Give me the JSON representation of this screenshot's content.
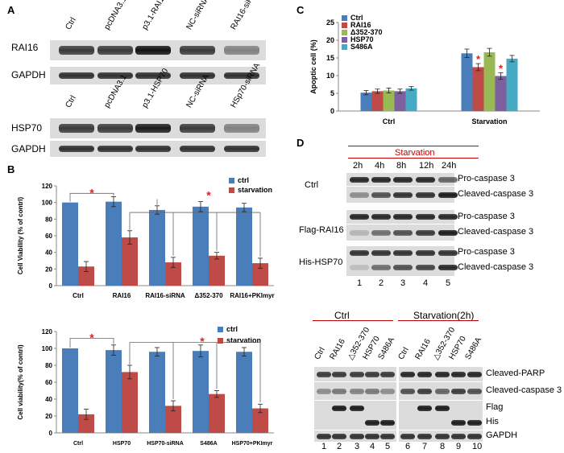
{
  "panel_letters": [
    "A",
    "B",
    "C",
    "D"
  ],
  "panelA": {
    "top_lanes": [
      "Ctrl",
      "pcDNA3.1",
      "p3.1-RAI16",
      "NC-siRNA",
      "RAI16-siRNA"
    ],
    "top_rows": [
      "RAI16",
      "GAPDH"
    ],
    "bottom_lanes": [
      "Ctrl",
      "pcDNA3.1",
      "p3.1-HSP70",
      "NC-siRNA",
      "HSp70-siRNA"
    ],
    "bottom_rows": [
      "HSP70",
      "GAPDH"
    ],
    "top_intensity": [
      0.8,
      0.8,
      1.0,
      0.8,
      0.45
    ],
    "bottom_intensity": [
      0.8,
      0.8,
      0.95,
      0.8,
      0.45
    ]
  },
  "panelD": {
    "header": "Starvation",
    "times": [
      "2h",
      "4h",
      "8h",
      "12h",
      "24h"
    ],
    "groups": [
      "Ctrl",
      "Flag-RAI16",
      "His-HSP70"
    ],
    "row_labels": [
      "Pro-caspase 3",
      "Cleaved-caspase 3"
    ],
    "lane_numbers": [
      "1",
      "2",
      "3",
      "4",
      "5"
    ],
    "lower_group1": "Ctrl",
    "lower_group2": "Starvation(2h)",
    "lower_lanes": [
      "Ctrl",
      "RAI16",
      "△352-370",
      "HSP70",
      "S486A",
      "Ctrl",
      "RAI16",
      "△352-370",
      "HSP70",
      "S486A"
    ],
    "lower_rows": [
      "Cleaved-PARP",
      "Cleaved-caspase 3",
      "Flag",
      "His",
      "GAPDH"
    ],
    "lower_numbers": [
      "1",
      "2",
      "3",
      "4",
      "5",
      "6",
      "7",
      "8",
      "9",
      "10"
    ]
  },
  "chart_data": [
    {
      "id": "B-top",
      "type": "bar",
      "categories": [
        "Ctrl",
        "RAI16",
        "RAI16-siRNA",
        "Δ352-370",
        "RAI16+PKImyr"
      ],
      "series": [
        {
          "name": "ctrl",
          "color": "#4a7ebb",
          "values": [
            100,
            101,
            91,
            95,
            94
          ],
          "errors": [
            0,
            6,
            5,
            6,
            5
          ]
        },
        {
          "name": "starvation",
          "color": "#be4b48",
          "values": [
            23,
            58,
            28,
            36,
            27
          ],
          "errors": [
            6,
            8,
            6,
            4,
            6
          ]
        }
      ],
      "ylabel": "Cell Viability (% of contrl)",
      "ylim": [
        0,
        120
      ],
      "yticks": [
        0,
        20,
        40,
        60,
        80,
        100,
        120
      ],
      "significance_marks": [
        "*",
        "*"
      ],
      "legend_position": "top-right"
    },
    {
      "id": "B-bottom",
      "type": "bar",
      "categories": [
        "Ctrl",
        "HSP70",
        "HSP70-siRNA",
        "S486A",
        "HSP70+PKImyr"
      ],
      "series": [
        {
          "name": "ctrl",
          "color": "#4a7ebb",
          "values": [
            100,
            98,
            96,
            97,
            96
          ],
          "errors": [
            0,
            6,
            5,
            7,
            5
          ]
        },
        {
          "name": "starvation",
          "color": "#be4b48",
          "values": [
            22,
            72,
            32,
            46,
            29
          ],
          "errors": [
            6,
            8,
            6,
            4,
            5
          ]
        }
      ],
      "ylabel": "Cell viability(% of contrl)",
      "ylim": [
        0,
        120
      ],
      "yticks": [
        0,
        20,
        40,
        60,
        80,
        100,
        120
      ],
      "significance_marks": [
        "*",
        "*"
      ],
      "legend_position": "top-right"
    },
    {
      "id": "C",
      "type": "bar",
      "categories": [
        "Ctrl",
        "Starvation"
      ],
      "series": [
        {
          "name": "Ctrl",
          "color": "#4a7ebb",
          "values": [
            5.2,
            16.3
          ],
          "errors": [
            0.6,
            1.2
          ]
        },
        {
          "name": "RAI16",
          "color": "#be4b48",
          "values": [
            5.6,
            12.4
          ],
          "errors": [
            0.6,
            1.0
          ]
        },
        {
          "name": "Δ352-370",
          "color": "#98b954",
          "values": [
            5.8,
            16.6
          ],
          "errors": [
            0.7,
            1.1
          ]
        },
        {
          "name": "HSP70",
          "color": "#7d60a0",
          "values": [
            5.6,
            9.9
          ],
          "errors": [
            0.6,
            0.9
          ]
        },
        {
          "name": "S486A",
          "color": "#46aac5",
          "values": [
            6.4,
            14.8
          ],
          "errors": [
            0.5,
            0.9
          ]
        }
      ],
      "ylabel": "Apoptic cell (%)",
      "ylim": [
        0,
        25
      ],
      "yticks": [
        0,
        5,
        10,
        15,
        20,
        25
      ],
      "significance_marks": [
        "*",
        "*"
      ],
      "legend_position": "top-left"
    }
  ]
}
